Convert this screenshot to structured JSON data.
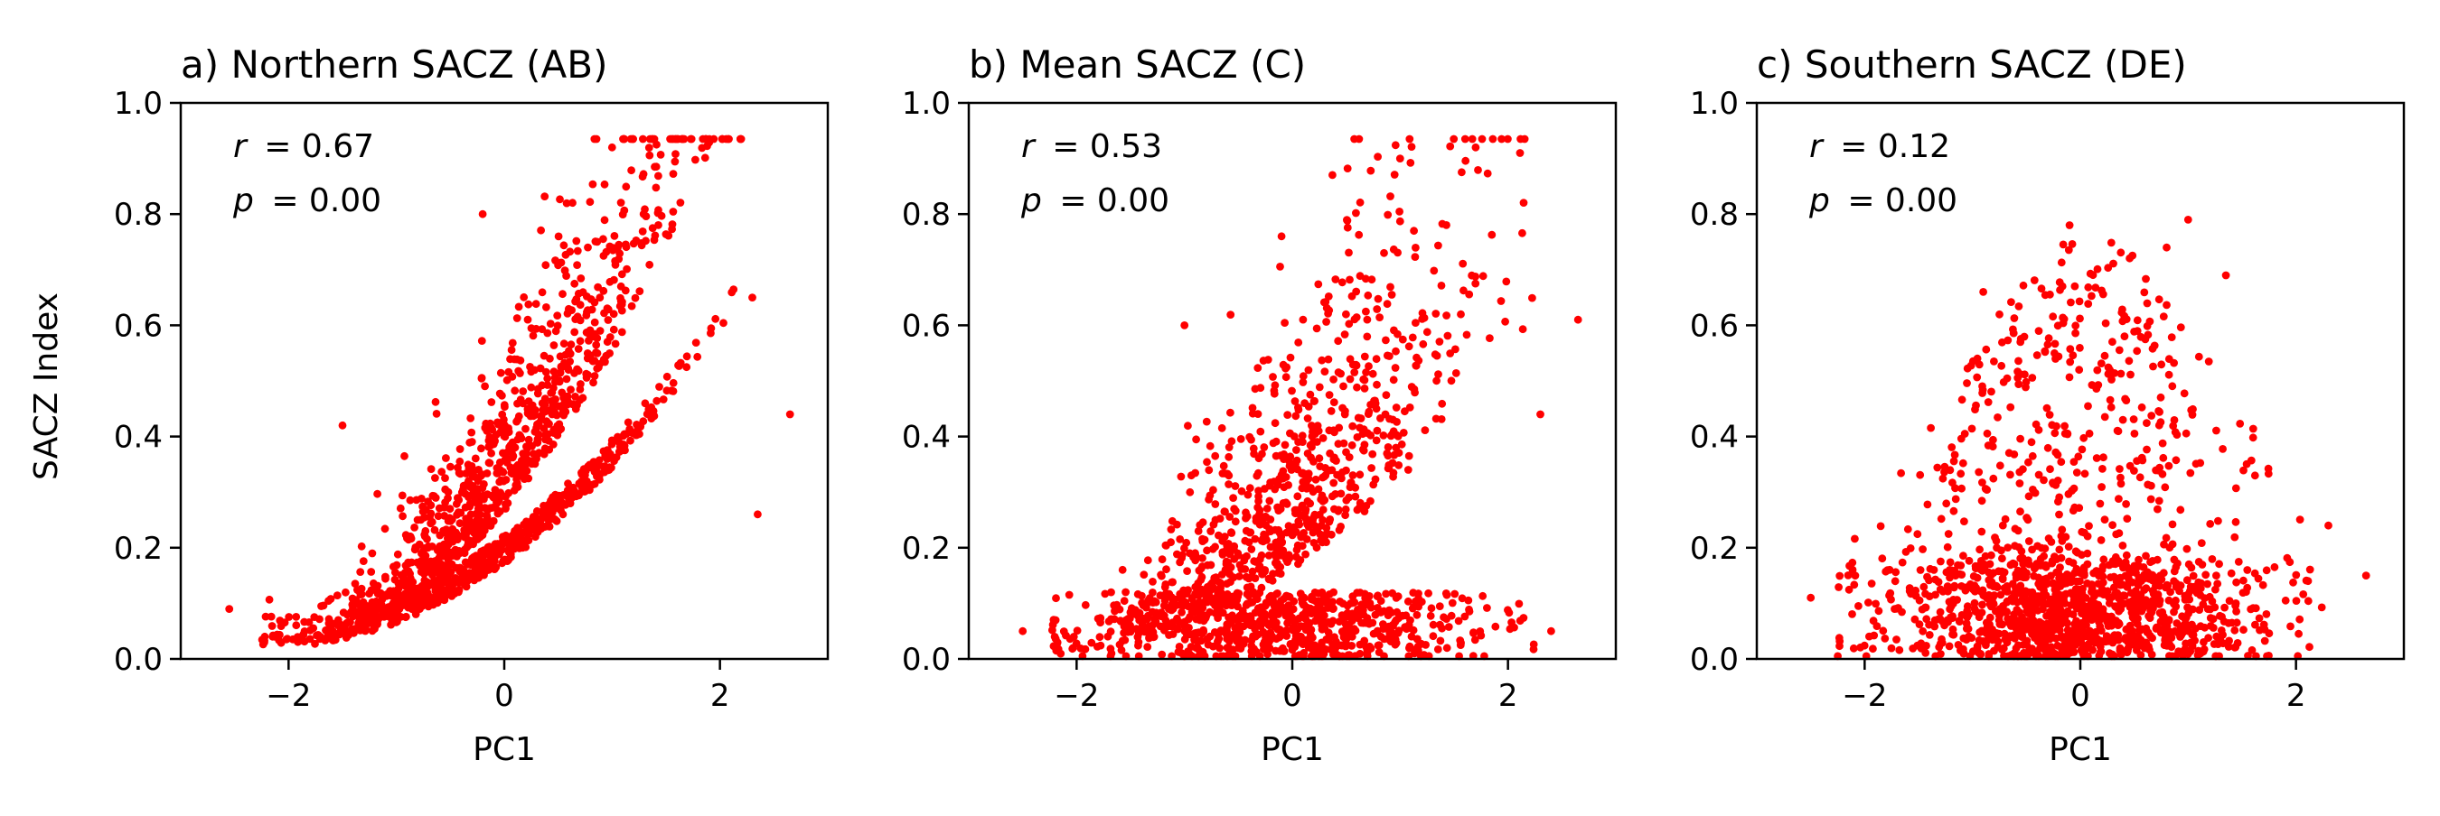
{
  "figure": {
    "shared_ylabel": "SACZ Index",
    "marker_color": "#ff0000"
  },
  "chart_data": [
    {
      "type": "scatter",
      "title": "a) Northern SACZ (AB)",
      "xlabel": "PC1",
      "ylabel": "SACZ Index",
      "xlim": [
        -3,
        3
      ],
      "ylim": [
        0.0,
        1.0
      ],
      "xticks": [
        "−2",
        "0",
        "2"
      ],
      "xtick_values": [
        -2,
        0,
        2
      ],
      "yticks": [
        "0.0",
        "0.2",
        "0.4",
        "0.6",
        "0.8",
        "1.0"
      ],
      "ytick_values": [
        0.0,
        0.2,
        0.4,
        0.6,
        0.8,
        1.0
      ],
      "stats": {
        "r_var": "r",
        "r_value": "= 0.67",
        "p_var": "p",
        "p_value": "= 0.00"
      },
      "correlation": 0.67,
      "color": "#ff0000",
      "n_points": 1500,
      "outliers": [
        [
          -2.55,
          0.09
        ],
        [
          2.65,
          0.44
        ],
        [
          2.35,
          0.26
        ],
        [
          1.9,
          0.93
        ],
        [
          1.0,
          0.92
        ],
        [
          -1.5,
          0.42
        ],
        [
          -0.2,
          0.8
        ],
        [
          2.3,
          0.65
        ]
      ]
    },
    {
      "type": "scatter",
      "title": "b) Mean SACZ (C)",
      "xlabel": "PC1",
      "ylabel": "",
      "xlim": [
        -3,
        3
      ],
      "ylim": [
        0.0,
        1.0
      ],
      "xticks": [
        "−2",
        "0",
        "2"
      ],
      "xtick_values": [
        -2,
        0,
        2
      ],
      "yticks": [
        "0.0",
        "0.2",
        "0.4",
        "0.6",
        "0.8",
        "1.0"
      ],
      "ytick_values": [
        0.0,
        0.2,
        0.4,
        0.6,
        0.8,
        1.0
      ],
      "stats": {
        "r_var": "r",
        "r_value": "= 0.53",
        "p_var": "p",
        "p_value": "= 0.00"
      },
      "correlation": 0.53,
      "color": "#ff0000",
      "n_points": 1500,
      "outliers": [
        [
          -2.5,
          0.05
        ],
        [
          2.65,
          0.61
        ],
        [
          2.4,
          0.05
        ],
        [
          1.7,
          0.92
        ],
        [
          1.0,
          0.9
        ],
        [
          -1.0,
          0.6
        ],
        [
          -0.1,
          0.76
        ],
        [
          2.3,
          0.44
        ]
      ]
    },
    {
      "type": "scatter",
      "title": "c) Southern SACZ (DE)",
      "xlabel": "PC1",
      "ylabel": "",
      "xlim": [
        -3,
        3
      ],
      "ylim": [
        0.0,
        1.0
      ],
      "xticks": [
        "−2",
        "0",
        "2"
      ],
      "xtick_values": [
        -2,
        0,
        2
      ],
      "yticks": [
        "0.0",
        "0.2",
        "0.4",
        "0.6",
        "0.8",
        "1.0"
      ],
      "ytick_values": [
        0.0,
        0.2,
        0.4,
        0.6,
        0.8,
        1.0
      ],
      "stats": {
        "r_var": "r",
        "r_value": "= 0.12",
        "p_var": "p",
        "p_value": "= 0.00"
      },
      "correlation": 0.12,
      "color": "#ff0000",
      "n_points": 1500,
      "outliers": [
        [
          -2.5,
          0.11
        ],
        [
          2.65,
          0.15
        ],
        [
          2.3,
          0.24
        ],
        [
          1.0,
          0.79
        ],
        [
          -0.1,
          0.78
        ],
        [
          -0.9,
          0.66
        ],
        [
          0.8,
          0.74
        ],
        [
          1.35,
          0.69
        ]
      ]
    }
  ]
}
